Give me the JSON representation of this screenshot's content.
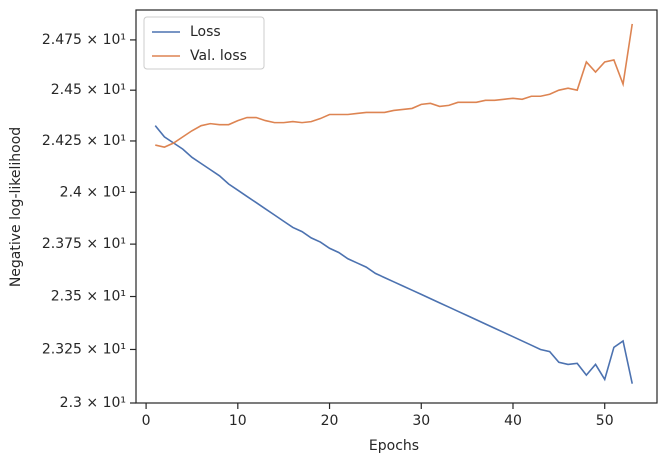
{
  "chart_data": {
    "type": "line",
    "xlabel": "Epochs",
    "ylabel": "Negative log-likelihood",
    "x": [
      1,
      2,
      3,
      4,
      5,
      6,
      7,
      8,
      9,
      10,
      11,
      12,
      13,
      14,
      15,
      16,
      17,
      18,
      19,
      20,
      21,
      22,
      23,
      24,
      25,
      26,
      27,
      28,
      29,
      30,
      31,
      32,
      33,
      34,
      35,
      36,
      37,
      38,
      39,
      40,
      41,
      42,
      43,
      44,
      45,
      46,
      47,
      48,
      49,
      50,
      51,
      52,
      53
    ],
    "series": [
      {
        "name": "Loss",
        "color": "#4c72b0",
        "values": [
          24.325,
          24.27,
          24.24,
          24.21,
          24.17,
          24.14,
          24.11,
          24.08,
          24.04,
          24.01,
          23.98,
          23.95,
          23.92,
          23.89,
          23.86,
          23.83,
          23.81,
          23.78,
          23.76,
          23.73,
          23.71,
          23.68,
          23.66,
          23.64,
          23.61,
          23.59,
          23.57,
          23.55,
          23.53,
          23.51,
          23.49,
          23.47,
          23.45,
          23.43,
          23.41,
          23.39,
          23.37,
          23.35,
          23.33,
          23.31,
          23.29,
          23.27,
          23.25,
          23.24,
          23.19,
          23.18,
          23.185,
          23.13,
          23.18,
          23.11,
          23.26,
          23.29,
          23.09
        ]
      },
      {
        "name": "Val. loss",
        "color": "#dd8452",
        "values": [
          24.23,
          24.22,
          24.24,
          24.27,
          24.3,
          24.325,
          24.335,
          24.33,
          24.33,
          24.35,
          24.365,
          24.365,
          24.35,
          24.34,
          24.34,
          24.345,
          24.34,
          24.345,
          24.36,
          24.38,
          24.38,
          24.38,
          24.385,
          24.39,
          24.39,
          24.39,
          24.4,
          24.405,
          24.41,
          24.43,
          24.435,
          24.42,
          24.425,
          24.44,
          24.44,
          24.44,
          24.45,
          24.45,
          24.455,
          24.46,
          24.455,
          24.47,
          24.47,
          24.48,
          24.5,
          24.51,
          24.5,
          24.64,
          24.59,
          24.64,
          24.65,
          24.53,
          24.83
        ]
      }
    ],
    "xlim": [
      -1.1,
      55.7
    ],
    "xticks": [
      0,
      10,
      20,
      30,
      40,
      50
    ],
    "ylim": [
      23.0,
      24.9
    ],
    "yscale": "log",
    "yticks": [
      {
        "value": 23,
        "label": "2.3 × 10¹"
      },
      {
        "value": 23.25,
        "label": "2.325 × 10¹"
      },
      {
        "value": 23.5,
        "label": "2.35 × 10¹"
      },
      {
        "value": 23.75,
        "label": "2.375 × 10¹"
      },
      {
        "value": 24,
        "label": "2.4 × 10¹"
      },
      {
        "value": 24.25,
        "label": "2.425 × 10¹"
      },
      {
        "value": 24.5,
        "label": "2.45 × 10¹"
      },
      {
        "value": 24.75,
        "label": "2.475 × 10¹"
      }
    ],
    "grid": false,
    "legend": "upper left"
  }
}
